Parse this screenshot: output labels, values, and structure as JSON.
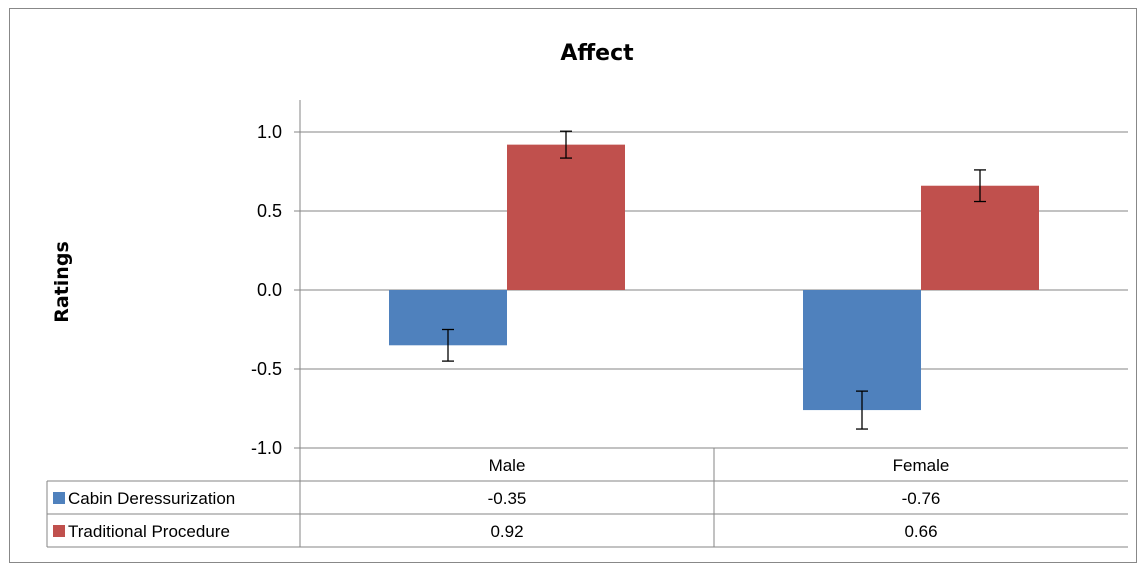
{
  "chart_data": {
    "type": "bar",
    "title": "Affect",
    "ylabel": "Ratings",
    "xlabel": "",
    "categories": [
      "Male",
      "Female"
    ],
    "ylim": [
      -1.0,
      1.0
    ],
    "yticks": [
      "1.0",
      "0.5",
      "0.0",
      "-0.5",
      "-1.0"
    ],
    "ytick_values": [
      1.0,
      0.5,
      0.0,
      -0.5,
      -1.0
    ],
    "grid": true,
    "legend": "data-table",
    "series": [
      {
        "name": "Cabin Deressurization",
        "color": "#4F81BD",
        "values": [
          -0.35,
          -0.76
        ],
        "labels": [
          "-0.35",
          "-0.76"
        ],
        "error": [
          0.1,
          0.12
        ]
      },
      {
        "name": "Traditional Procedure",
        "color": "#C0504D",
        "values": [
          0.92,
          0.66
        ],
        "labels": [
          "0.92",
          "0.66"
        ],
        "error": [
          0.085,
          0.1
        ]
      }
    ]
  }
}
